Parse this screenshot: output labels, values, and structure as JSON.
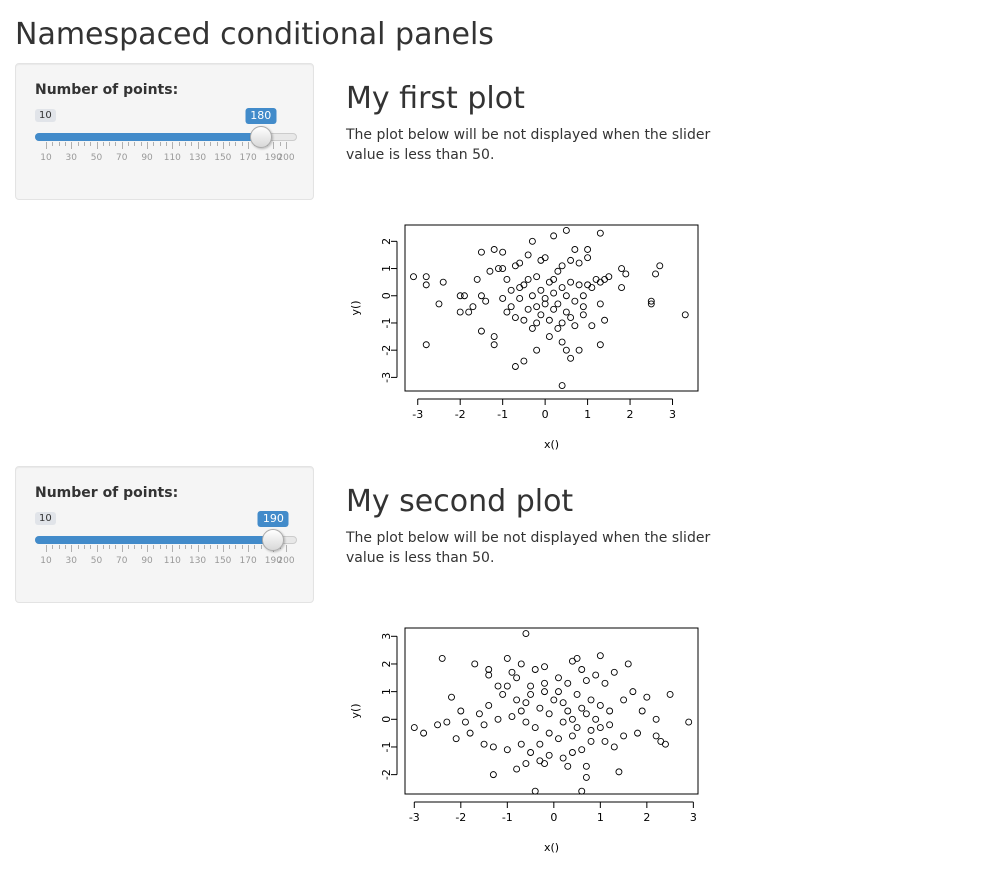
{
  "page": {
    "title": "Namespaced conditional panels"
  },
  "modules": [
    {
      "slider": {
        "label": "Number of points:",
        "min": 10,
        "max": 200,
        "value": 180,
        "min_label": "10",
        "value_label": "180",
        "tick_labels": [
          "10",
          "30",
          "50",
          "70",
          "90",
          "110",
          "130",
          "150",
          "170",
          "190",
          "200"
        ]
      },
      "heading": "My first plot",
      "description": "The plot below will be not displayed when the slider value is less than 50."
    },
    {
      "slider": {
        "label": "Number of points:",
        "min": 10,
        "max": 200,
        "value": 190,
        "min_label": "10",
        "value_label": "190",
        "tick_labels": [
          "10",
          "30",
          "50",
          "70",
          "90",
          "110",
          "130",
          "150",
          "170",
          "190",
          "200"
        ]
      },
      "heading": "My second plot",
      "description": "The plot below will be not displayed when the slider value is less than 50."
    }
  ],
  "chart_data": [
    {
      "type": "scatter",
      "title": "",
      "xlabel": "x()",
      "ylabel": "y()",
      "xlim": [
        -3.3,
        3.6
      ],
      "ylim": [
        -3.5,
        2.6
      ],
      "xticks": [
        -3,
        -2,
        -1,
        0,
        1,
        2,
        3
      ],
      "yticks": [
        -3,
        -2,
        -1,
        0,
        1,
        2
      ],
      "marker": "open-circle",
      "points": [
        [
          -3.1,
          0.7
        ],
        [
          -2.8,
          0.7
        ],
        [
          -2.8,
          0.4
        ],
        [
          -2.4,
          0.5
        ],
        [
          -2.5,
          -0.3
        ],
        [
          -2.8,
          -1.8
        ],
        [
          -2.0,
          0.0
        ],
        [
          -1.9,
          0.0
        ],
        [
          -2.0,
          -0.6
        ],
        [
          -1.8,
          -0.6
        ],
        [
          -1.5,
          0.0
        ],
        [
          -1.4,
          -0.2
        ],
        [
          -1.5,
          -1.3
        ],
        [
          -1.2,
          -1.5
        ],
        [
          -1.2,
          -1.8
        ],
        [
          -1.5,
          1.6
        ],
        [
          -1.2,
          1.7
        ],
        [
          -1.0,
          1.6
        ],
        [
          -1.3,
          0.9
        ],
        [
          -1.1,
          1.0
        ],
        [
          -1.0,
          1.0
        ],
        [
          -0.7,
          1.1
        ],
        [
          -0.6,
          1.2
        ],
        [
          -0.4,
          1.5
        ],
        [
          -0.3,
          2.0
        ],
        [
          -0.1,
          1.3
        ],
        [
          0.0,
          1.4
        ],
        [
          0.2,
          2.2
        ],
        [
          0.5,
          2.4
        ],
        [
          0.7,
          1.7
        ],
        [
          1.0,
          1.7
        ],
        [
          1.3,
          2.3
        ],
        [
          1.0,
          1.4
        ],
        [
          0.8,
          1.2
        ],
        [
          0.6,
          1.3
        ],
        [
          0.4,
          1.1
        ],
        [
          0.3,
          0.9
        ],
        [
          -0.8,
          -0.4
        ],
        [
          -0.9,
          -0.6
        ],
        [
          -0.7,
          -0.8
        ],
        [
          -0.5,
          -0.9
        ],
        [
          -0.3,
          -1.2
        ],
        [
          -0.2,
          -1.0
        ],
        [
          0.1,
          -0.9
        ],
        [
          0.3,
          -1.2
        ],
        [
          0.4,
          -1.0
        ],
        [
          0.6,
          -0.8
        ],
        [
          0.9,
          -0.7
        ],
        [
          1.1,
          -1.1
        ],
        [
          1.4,
          -0.9
        ],
        [
          1.3,
          -1.8
        ],
        [
          0.8,
          -2.0
        ],
        [
          0.5,
          -2.0
        ],
        [
          0.4,
          -1.7
        ],
        [
          0.1,
          -1.5
        ],
        [
          -0.2,
          -2.0
        ],
        [
          -0.5,
          -2.4
        ],
        [
          -0.7,
          -2.6
        ],
        [
          0.6,
          -2.3
        ],
        [
          0.4,
          -3.3
        ],
        [
          -0.2,
          -0.4
        ],
        [
          0.0,
          -0.1
        ],
        [
          0.2,
          0.1
        ],
        [
          0.4,
          0.3
        ],
        [
          0.5,
          0.0
        ],
        [
          0.7,
          -0.2
        ],
        [
          0.9,
          0.0
        ],
        [
          1.1,
          0.3
        ],
        [
          1.3,
          0.5
        ],
        [
          1.5,
          0.7
        ],
        [
          1.8,
          1.0
        ],
        [
          1.9,
          0.8
        ],
        [
          1.8,
          0.3
        ],
        [
          2.6,
          0.8
        ],
        [
          2.7,
          1.1
        ],
        [
          2.5,
          -0.2
        ],
        [
          2.5,
          -0.3
        ],
        [
          3.3,
          -0.7
        ],
        [
          -0.5,
          0.4
        ],
        [
          -0.4,
          0.6
        ],
        [
          -0.3,
          0.0
        ],
        [
          -0.1,
          0.2
        ],
        [
          0.1,
          0.5
        ],
        [
          0.2,
          0.6
        ],
        [
          -1.0,
          -0.1
        ],
        [
          -0.8,
          0.2
        ],
        [
          -0.6,
          0.3
        ],
        [
          -0.9,
          0.6
        ],
        [
          0.8,
          0.4
        ],
        [
          1.0,
          0.4
        ],
        [
          1.2,
          0.6
        ],
        [
          1.4,
          0.6
        ],
        [
          0.9,
          -0.4
        ],
        [
          1.3,
          -0.3
        ],
        [
          -0.4,
          -0.5
        ],
        [
          -0.1,
          -0.7
        ],
        [
          0.2,
          -0.5
        ],
        [
          0.5,
          -0.6
        ],
        [
          0.7,
          -1.1
        ],
        [
          0.0,
          -0.3
        ],
        [
          -1.6,
          0.6
        ],
        [
          -1.7,
          -0.4
        ],
        [
          -0.2,
          0.7
        ],
        [
          0.6,
          0.5
        ],
        [
          0.3,
          -0.3
        ],
        [
          -0.6,
          -0.1
        ]
      ]
    },
    {
      "type": "scatter",
      "title": "",
      "xlabel": "x()",
      "ylabel": "y()",
      "xlim": [
        -3.2,
        3.1
      ],
      "ylim": [
        -2.7,
        3.3
      ],
      "xticks": [
        -3,
        -2,
        -1,
        0,
        1,
        2,
        3
      ],
      "yticks": [
        -2,
        -1,
        0,
        1,
        2,
        3
      ],
      "marker": "open-circle",
      "points": [
        [
          -2.4,
          2.2
        ],
        [
          -1.7,
          2.0
        ],
        [
          -1.4,
          1.8
        ],
        [
          -1.0,
          2.2
        ],
        [
          -0.7,
          2.0
        ],
        [
          -0.6,
          3.1
        ],
        [
          0.4,
          2.1
        ],
        [
          0.5,
          2.2
        ],
        [
          1.0,
          2.3
        ],
        [
          1.6,
          2.0
        ],
        [
          1.3,
          1.7
        ],
        [
          0.9,
          1.6
        ],
        [
          0.6,
          1.8
        ],
        [
          -0.4,
          1.8
        ],
        [
          -0.2,
          1.9
        ],
        [
          -1.4,
          1.6
        ],
        [
          -1.2,
          1.2
        ],
        [
          -1.0,
          1.2
        ],
        [
          -0.8,
          1.5
        ],
        [
          -0.5,
          1.2
        ],
        [
          -0.2,
          1.3
        ],
        [
          0.1,
          1.5
        ],
        [
          0.3,
          1.3
        ],
        [
          0.7,
          1.4
        ],
        [
          1.1,
          1.3
        ],
        [
          1.7,
          1.0
        ],
        [
          2.5,
          0.9
        ],
        [
          2.0,
          0.8
        ],
        [
          1.5,
          0.7
        ],
        [
          1.0,
          0.5
        ],
        [
          0.7,
          0.2
        ],
        [
          0.4,
          0.0
        ],
        [
          0.2,
          -0.1
        ],
        [
          -0.1,
          0.2
        ],
        [
          -0.3,
          0.4
        ],
        [
          -0.6,
          0.6
        ],
        [
          -0.8,
          0.7
        ],
        [
          -1.1,
          0.9
        ],
        [
          -1.4,
          0.5
        ],
        [
          -1.6,
          0.2
        ],
        [
          -2.0,
          0.3
        ],
        [
          -2.2,
          0.8
        ],
        [
          -2.5,
          -0.2
        ],
        [
          -2.3,
          -0.1
        ],
        [
          -2.8,
          -0.5
        ],
        [
          -3.0,
          -0.3
        ],
        [
          -2.1,
          -0.7
        ],
        [
          -1.8,
          -0.5
        ],
        [
          -1.5,
          -0.9
        ],
        [
          -1.3,
          -1.0
        ],
        [
          -1.0,
          -1.1
        ],
        [
          -0.7,
          -0.9
        ],
        [
          -0.5,
          -1.2
        ],
        [
          -0.3,
          -1.5
        ],
        [
          -0.1,
          -1.3
        ],
        [
          0.2,
          -1.4
        ],
        [
          0.4,
          -1.2
        ],
        [
          0.6,
          -1.1
        ],
        [
          0.8,
          -0.8
        ],
        [
          1.1,
          -0.8
        ],
        [
          1.3,
          -1.0
        ],
        [
          1.5,
          -0.6
        ],
        [
          1.8,
          -0.5
        ],
        [
          2.2,
          -0.6
        ],
        [
          2.3,
          -0.8
        ],
        [
          2.4,
          -0.9
        ],
        [
          2.9,
          -0.1
        ],
        [
          2.2,
          0.0
        ],
        [
          1.9,
          0.3
        ],
        [
          1.4,
          -1.9
        ],
        [
          0.7,
          -1.7
        ],
        [
          0.7,
          -2.1
        ],
        [
          0.6,
          -2.6
        ],
        [
          -0.4,
          -2.6
        ],
        [
          -0.8,
          -1.8
        ],
        [
          -1.3,
          -2.0
        ],
        [
          -0.6,
          -1.6
        ],
        [
          -0.2,
          -1.6
        ],
        [
          0.3,
          -1.7
        ],
        [
          0.1,
          -0.7
        ],
        [
          -0.1,
          -0.5
        ],
        [
          -0.4,
          -0.3
        ],
        [
          -0.6,
          -0.1
        ],
        [
          -0.9,
          0.1
        ],
        [
          -1.2,
          0.0
        ],
        [
          0.0,
          0.7
        ],
        [
          0.2,
          0.6
        ],
        [
          0.5,
          0.9
        ],
        [
          0.8,
          0.7
        ],
        [
          1.2,
          0.3
        ],
        [
          0.9,
          0.0
        ],
        [
          0.5,
          -0.3
        ],
        [
          0.3,
          0.3
        ],
        [
          -0.2,
          1.0
        ],
        [
          -0.5,
          0.9
        ],
        [
          -0.7,
          0.3
        ],
        [
          0.6,
          0.4
        ],
        [
          1.0,
          -0.3
        ],
        [
          -1.5,
          -0.2
        ],
        [
          -1.9,
          -0.1
        ],
        [
          -0.9,
          1.7
        ],
        [
          0.1,
          1.0
        ],
        [
          0.8,
          -0.4
        ],
        [
          -0.3,
          -0.9
        ],
        [
          0.4,
          -0.6
        ],
        [
          1.2,
          -0.2
        ]
      ]
    }
  ]
}
